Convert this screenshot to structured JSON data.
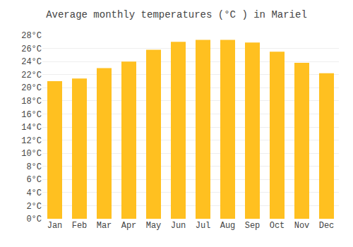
{
  "chart_data": {
    "type": "bar",
    "title": "Average monthly temperatures (°C ) in Mariel",
    "categories": [
      "Jan",
      "Feb",
      "Mar",
      "Apr",
      "May",
      "Jun",
      "Jul",
      "Aug",
      "Sep",
      "Oct",
      "Nov",
      "Dec"
    ],
    "values": [
      21.0,
      21.4,
      23.0,
      24.0,
      25.8,
      27.0,
      27.3,
      27.3,
      26.9,
      25.5,
      23.8,
      22.2
    ],
    "color": "#FFC020",
    "ylim": [
      0,
      28
    ],
    "yticks": [
      {
        "value": 0,
        "label": "0°C"
      },
      {
        "value": 2,
        "label": "2°C"
      },
      {
        "value": 4,
        "label": "4°C"
      },
      {
        "value": 6,
        "label": "6°C"
      },
      {
        "value": 8,
        "label": "8°C"
      },
      {
        "value": 10,
        "label": "10°C"
      },
      {
        "value": 12,
        "label": "12°C"
      },
      {
        "value": 14,
        "label": "14°C"
      },
      {
        "value": 16,
        "label": "16°C"
      },
      {
        "value": 18,
        "label": "18°C"
      },
      {
        "value": 20,
        "label": "20°C"
      },
      {
        "value": 22,
        "label": "22°C"
      },
      {
        "value": 24,
        "label": "24°C"
      },
      {
        "value": 26,
        "label": "26°C"
      },
      {
        "value": 28,
        "label": "28°C"
      }
    ],
    "grid": true
  }
}
